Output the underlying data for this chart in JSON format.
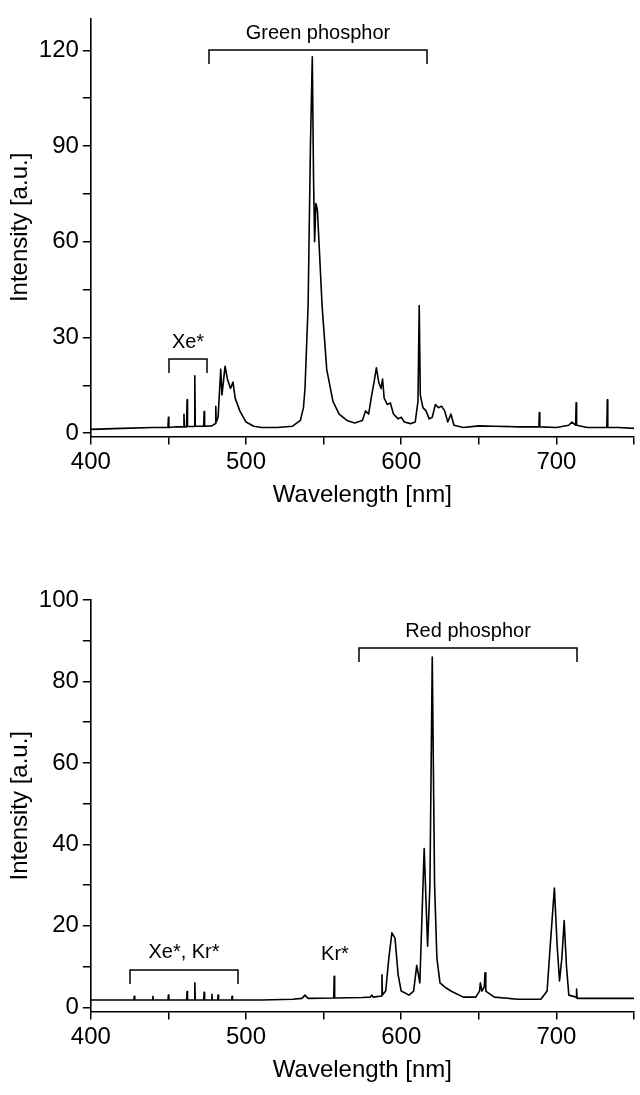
{
  "chart_data": [
    {
      "type": "line",
      "xlabel": "Wavelength [nm]",
      "ylabel": "Intensity [a.u.]",
      "marker": "none",
      "line_style": "solid",
      "xlim": [
        400,
        750
      ],
      "xticks": [
        400,
        {
          "value": 450,
          "label": null
        },
        500,
        {
          "value": 550,
          "label": null
        },
        600,
        {
          "value": 650,
          "label": null
        },
        700,
        {
          "value": 750,
          "label": null
        }
      ],
      "ylim": [
        -1,
        130
      ],
      "yticks": [
        0,
        {
          "value": 15,
          "label": null
        },
        30,
        {
          "value": 45,
          "label": null
        },
        60,
        {
          "value": 75,
          "label": null
        },
        90,
        {
          "value": 105,
          "label": null
        },
        120
      ],
      "annotations": [
        "Green phosphor",
        "Xe*"
      ],
      "series": [
        {
          "color": "#000000",
          "x": [
            400,
            420,
            440,
            449.7,
            450,
            450.3,
            455,
            459.7,
            460,
            460.3,
            461.7,
            462,
            462.3,
            466.7,
            467,
            467.3,
            470,
            472.7,
            473,
            473.3,
            478,
            480.2,
            480.5,
            480.8,
            482,
            483.7,
            484.5,
            486.5,
            488,
            490,
            491.6,
            493,
            496,
            500,
            505,
            510,
            520,
            530,
            535,
            537,
            538,
            540,
            541.5,
            542.7,
            543.5,
            544.2,
            545,
            546,
            547,
            549,
            552,
            556,
            560,
            565,
            570,
            575,
            577,
            579,
            581,
            582.5,
            584,
            585.5,
            587,
            588,
            589,
            591,
            593,
            595,
            598,
            600,
            602,
            606,
            609,
            610.8,
            611.6,
            612.3,
            614,
            616,
            618,
            620,
            622,
            624,
            626,
            628,
            630,
            632,
            634,
            640,
            650,
            660,
            675,
            688.7,
            689,
            689.3,
            700,
            708,
            710,
            712.4,
            712.7,
            713,
            720,
            732.5,
            732.8,
            733.1,
            740,
            750
          ],
          "values": [
            1.2,
            1.5,
            1.8,
            1.8,
            5,
            1.8,
            2,
            2,
            5.9,
            2,
            2,
            10.5,
            2.1,
            2.1,
            18,
            2.2,
            2.2,
            2.2,
            6.8,
            2.2,
            2.3,
            3,
            8.4,
            3.5,
            5,
            20,
            12,
            21,
            17,
            14,
            16,
            11,
            7,
            3.5,
            2.2,
            1.8,
            1.8,
            2.2,
            4,
            8,
            14,
            40,
            90,
            118,
            80,
            60,
            72,
            70,
            60,
            40,
            20,
            10,
            6,
            4,
            3.2,
            4,
            7,
            6,
            12,
            16,
            20.5,
            16,
            14,
            17,
            11,
            9,
            9.5,
            6,
            4.5,
            5,
            3.5,
            3,
            3.5,
            10,
            40,
            12,
            8,
            7,
            4.5,
            5,
            9,
            8,
            8.5,
            7,
            3.5,
            6,
            2.5,
            1.8,
            2.3,
            2.2,
            2,
            2,
            6.5,
            2,
            1.8,
            2.5,
            3.5,
            2.5,
            9.5,
            2.5,
            1.8,
            1.8,
            10.5,
            1.8,
            1.8,
            1.5
          ]
        }
      ]
    },
    {
      "type": "line",
      "xlabel": "Wavelength [nm]",
      "ylabel": "Intensity [a.u.]",
      "marker": "none",
      "line_style": "solid",
      "xlim": [
        400,
        750
      ],
      "xticks": [
        400,
        {
          "value": 450,
          "label": null
        },
        500,
        {
          "value": 550,
          "label": null
        },
        600,
        {
          "value": 650,
          "label": null
        },
        700,
        {
          "value": 750,
          "label": null
        }
      ],
      "ylim": [
        -1,
        100
      ],
      "yticks": [
        0,
        {
          "value": 10,
          "label": null
        },
        20,
        {
          "value": 30,
          "label": null
        },
        40,
        {
          "value": 50,
          "label": null
        },
        60,
        {
          "value": 70,
          "label": null
        },
        80,
        {
          "value": 90,
          "label": null
        },
        100
      ],
      "annotations": [
        "Xe*, Kr*",
        "Kr*",
        "Red phosphor"
      ],
      "series": [
        {
          "color": "#000000",
          "x": [
            400,
            420,
            427.7,
            428,
            428.3,
            439.7,
            440,
            440.3,
            449.7,
            450,
            450.3,
            461.7,
            462,
            462.3,
            466.7,
            467,
            467.3,
            472.7,
            473,
            473.3,
            477.7,
            478,
            478.3,
            481.7,
            482,
            482.3,
            490.7,
            491,
            491.3,
            510,
            530,
            536,
            538,
            540,
            556.5,
            556.8,
            557.1,
            575,
            580,
            581,
            582,
            587.3,
            587.6,
            587.9,
            590,
            592,
            594,
            596,
            598,
            600,
            605,
            608,
            610,
            612,
            614.8,
            617,
            618.5,
            620,
            621.5,
            623,
            625,
            628,
            632,
            640,
            648,
            650.5,
            651,
            652,
            653.5,
            654,
            654.5,
            660,
            675,
            690,
            694,
            696,
            698.7,
            700.5,
            702,
            703.5,
            705,
            706.5,
            708,
            712.7,
            713,
            713.3,
            730,
            750
          ],
          "values": [
            1.8,
            1.8,
            1.8,
            2.7,
            1.8,
            1.8,
            2.7,
            1.8,
            1.8,
            3,
            1.8,
            1.8,
            3.9,
            1.8,
            1.8,
            6,
            1.8,
            1.8,
            3.7,
            1.8,
            1.8,
            3.2,
            1.8,
            1.8,
            3,
            1.8,
            1.8,
            2.7,
            1.8,
            1.8,
            2,
            2.2,
            3,
            2.2,
            2.3,
            7.6,
            2.3,
            2.4,
            2.5,
            3,
            2.5,
            2.8,
            8,
            3,
            4,
            12,
            18.3,
            17,
            8,
            4,
            3,
            4,
            10.3,
            6,
            39,
            15,
            30,
            86,
            30,
            12,
            6,
            5,
            4,
            2.5,
            2.5,
            4,
            6,
            4,
            5,
            8.5,
            4,
            2.5,
            2,
            2,
            4,
            15,
            29.3,
            15,
            6.5,
            12,
            21.3,
            10,
            3,
            2.5,
            4.5,
            2.2,
            2.2,
            2.2
          ]
        }
      ]
    }
  ]
}
